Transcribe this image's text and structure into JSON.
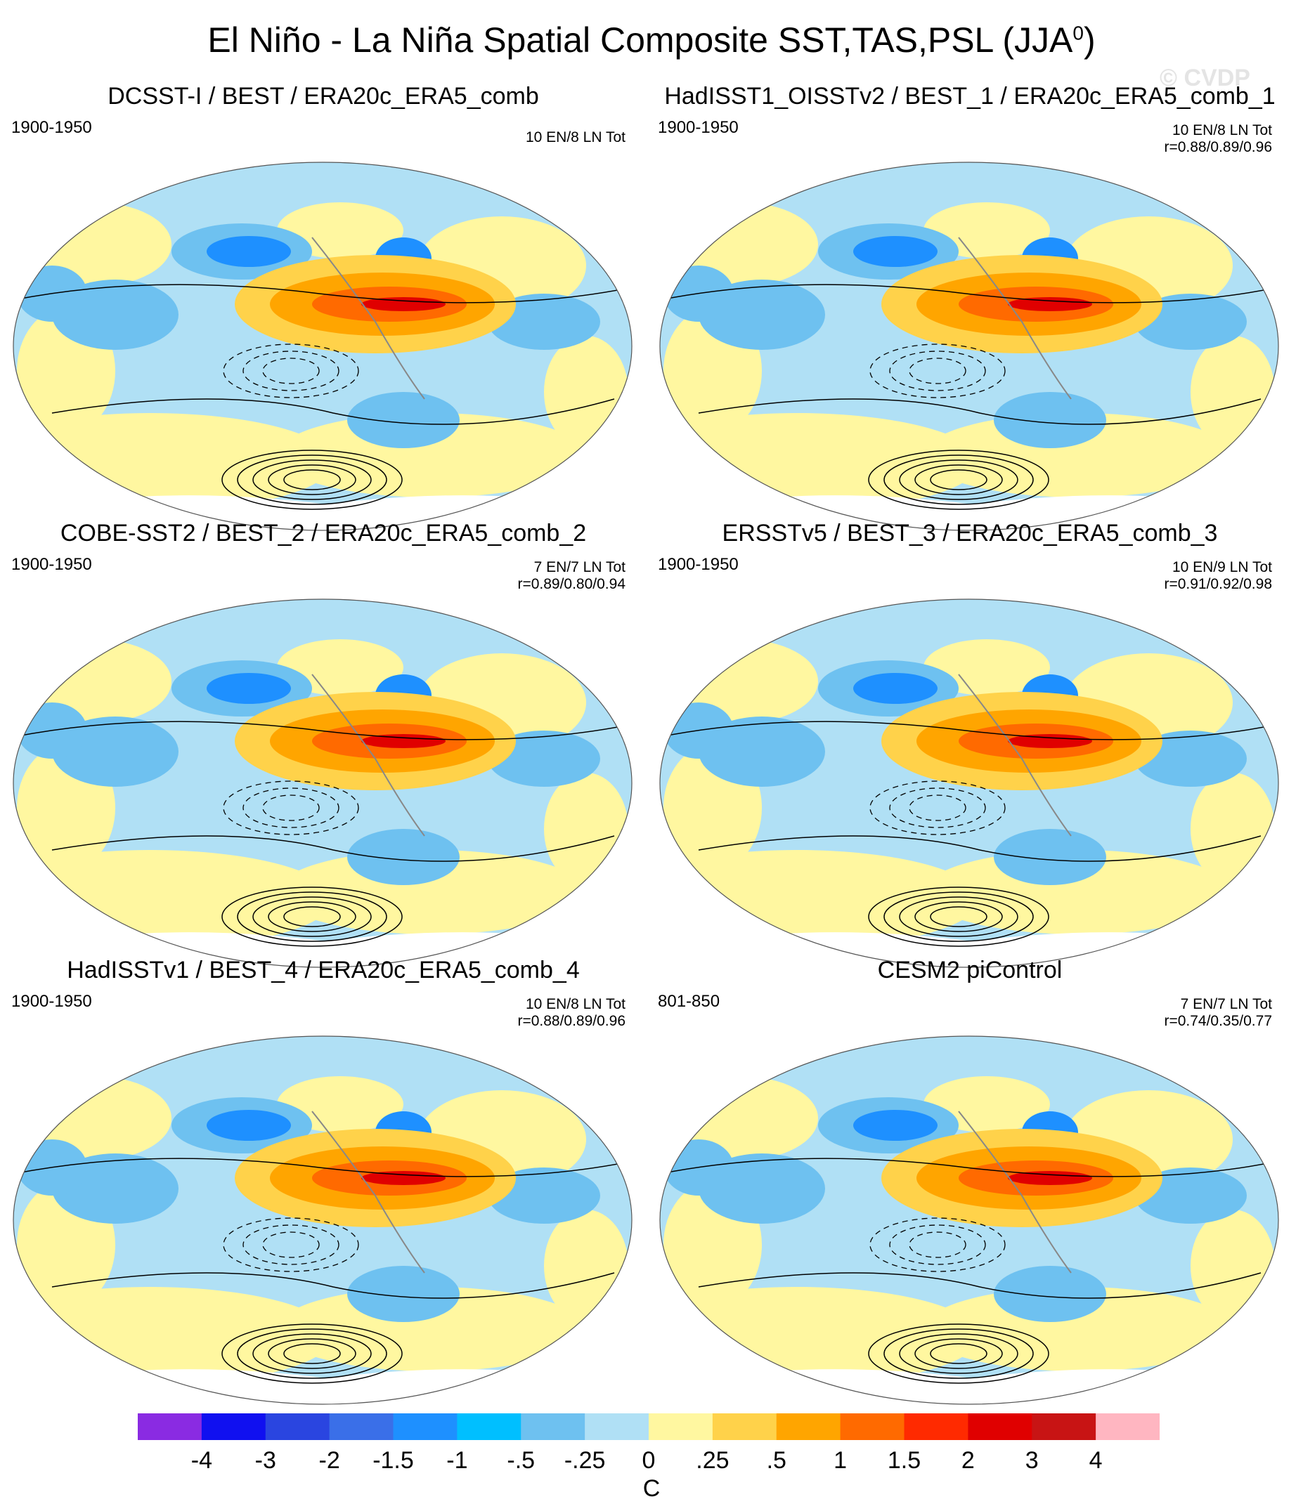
{
  "title": "El Niño - La Niña Spatial Composite SST,TAS,PSL (JJA",
  "title_superscript": "0",
  "title_close": ")",
  "watermark": "© CVDP",
  "panels": [
    {
      "title": "DCSST-I / BEST / ERA20c_ERA5_comb",
      "years": "1900-1950",
      "count": "10 EN/8 LN Tot",
      "corr": ""
    },
    {
      "title": "HadISST1_OISSTv2 / BEST_1 / ERA20c_ERA5_comb_1",
      "years": "1900-1950",
      "count": "10 EN/8 LN Tot",
      "corr": "r=0.88/0.89/0.96"
    },
    {
      "title": "COBE-SST2 / BEST_2 / ERA20c_ERA5_comb_2",
      "years": "1900-1950",
      "count": "7 EN/7 LN Tot",
      "corr": "r=0.89/0.80/0.94"
    },
    {
      "title": "ERSSTv5 / BEST_3 / ERA20c_ERA5_comb_3",
      "years": "1900-1950",
      "count": "10 EN/9 LN Tot",
      "corr": "r=0.91/0.92/0.98"
    },
    {
      "title": "HadISSTv1 / BEST_4 / ERA20c_ERA5_comb_4",
      "years": "1900-1950",
      "count": "10 EN/8 LN Tot",
      "corr": "r=0.88/0.89/0.96"
    },
    {
      "title": "CESM2 piControl",
      "years": "801-850",
      "count": "7 EN/7 LN Tot",
      "corr": "r=0.74/0.35/0.77"
    }
  ],
  "colorbar": {
    "colors": [
      "#8a2be2",
      "#1010f0",
      "#2a45e0",
      "#3a6fe8",
      "#1e90ff",
      "#00bfff",
      "#6ec1f0",
      "#b0e0f5",
      "#fff7a0",
      "#ffd24a",
      "#ffa500",
      "#ff6a00",
      "#ff2a00",
      "#e00000",
      "#c81414",
      "#ffb6c1"
    ],
    "labels": [
      "-4",
      "-3",
      "-2",
      "-1.5",
      "-1",
      "-.5",
      "-.25",
      "0",
      ".25",
      ".5",
      "1",
      "1.5",
      "2",
      "3",
      "4"
    ],
    "unit": "C"
  },
  "map_colors": {
    "land_edge": "#888888",
    "ocean_base": "#b0e0f5",
    "warm": "#ffd24a",
    "warmer": "#ffa500",
    "hot": "#ff6a00",
    "hottest": "#e00000",
    "cool": "#6ec1f0",
    "cold": "#1e90ff",
    "pale_warm": "#fff7a0",
    "antarctic": "#ffffff"
  }
}
